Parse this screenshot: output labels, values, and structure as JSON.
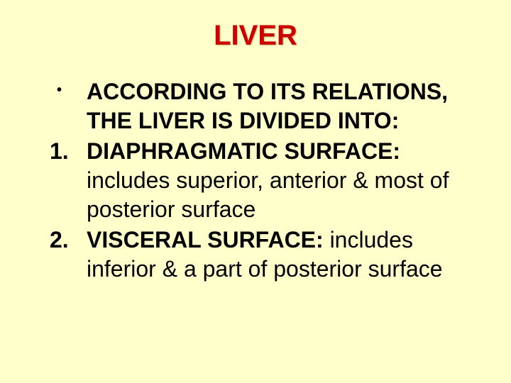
{
  "slide": {
    "background_color": "#ffffcc",
    "title": {
      "text": "LIVER",
      "color": "#cc0000",
      "fontsize": 40,
      "font_weight": "bold"
    },
    "body_fontsize": 32,
    "text_color": "#000000",
    "items": [
      {
        "marker": "•",
        "marker_type": "bullet",
        "bold_text": "ACCORDING TO ITS RELATIONS, THE LIVER IS DIVIDED INTO:",
        "normal_text": ""
      },
      {
        "marker": "1.",
        "marker_type": "number",
        "bold_text": "DIAPHRAGMATIC SURFACE: ",
        "normal_text": "includes superior, anterior & most of posterior surface"
      },
      {
        "marker": "2.",
        "marker_type": "number",
        "bold_text": "VISCERAL SURFACE: ",
        "normal_text": "includes inferior & a part of posterior surface"
      }
    ]
  }
}
